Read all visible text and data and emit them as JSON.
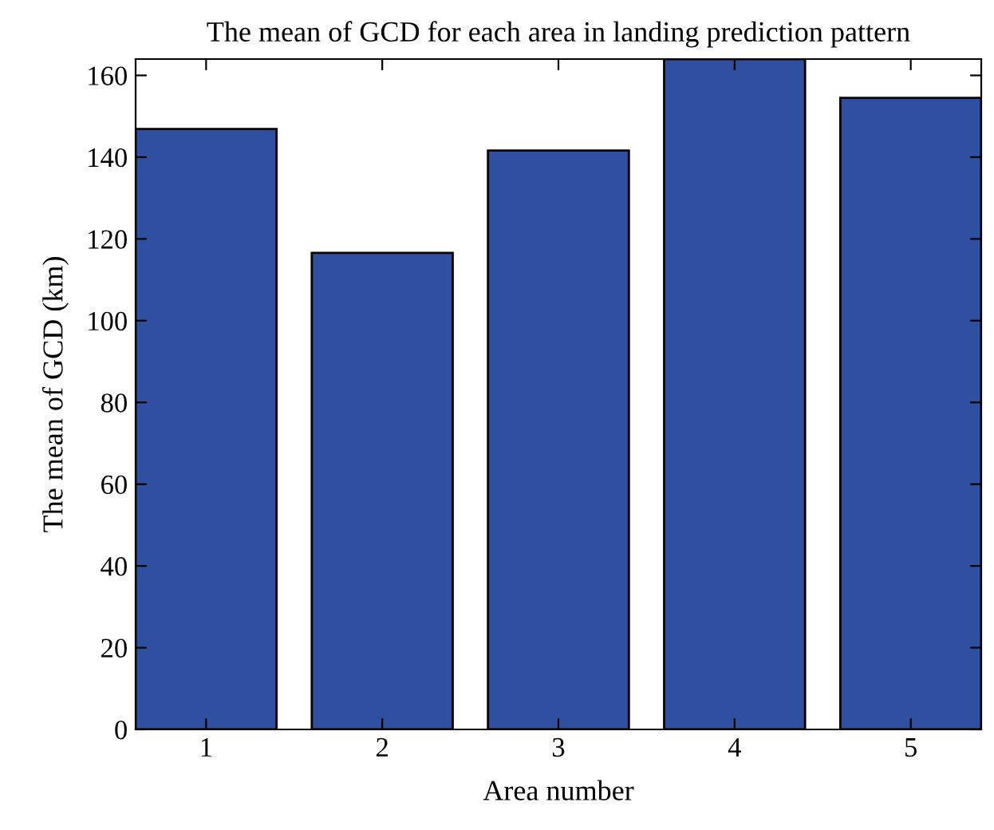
{
  "chart_data": {
    "type": "bar",
    "title": "The mean of GCD for each area in landing prediction pattern",
    "xlabel": "Area number",
    "ylabel": "The mean of GCD (km)",
    "categories": [
      "1",
      "2",
      "3",
      "4",
      "5"
    ],
    "values": [
      146.9,
      116.6,
      141.6,
      164,
      154.5
    ],
    "color": "#2f4fa0",
    "ylim": [
      0,
      164
    ],
    "yticks": [
      0,
      20,
      40,
      60,
      80,
      100,
      120,
      140,
      160
    ],
    "grid": false
  }
}
